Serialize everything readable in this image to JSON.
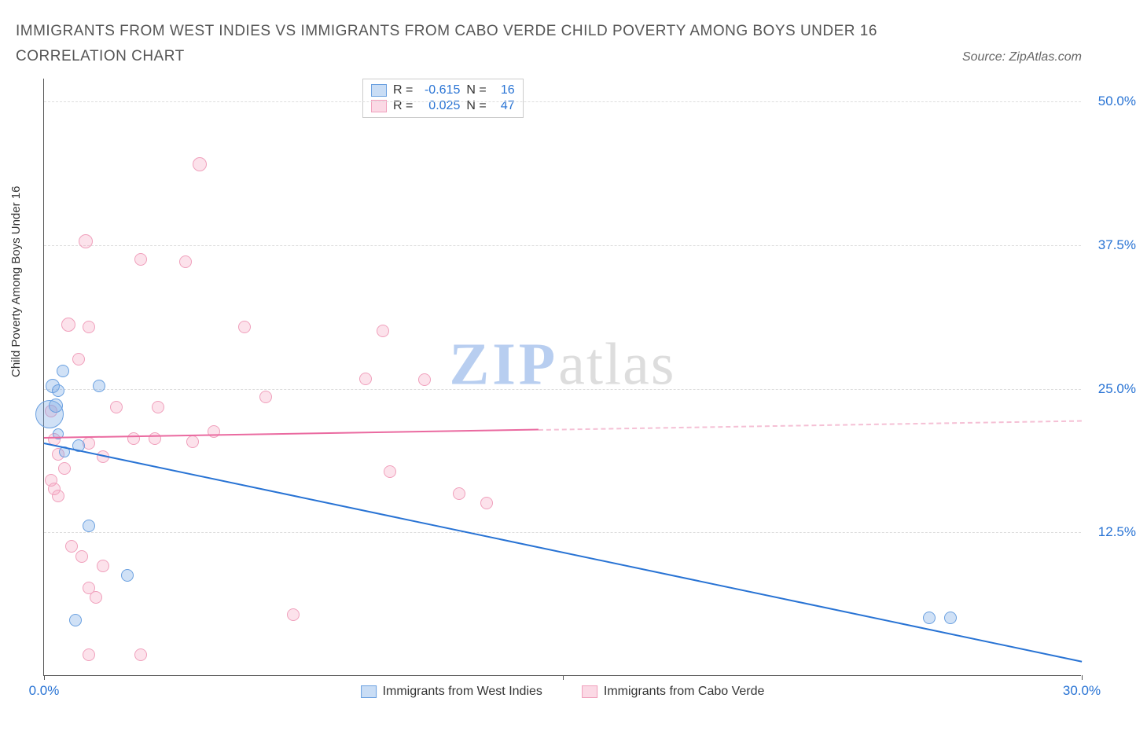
{
  "title": "IMMIGRANTS FROM WEST INDIES VS IMMIGRANTS FROM CABO VERDE CHILD POVERTY AMONG BOYS UNDER 16 CORRELATION CHART",
  "source_label": "Source: ZipAtlas.com",
  "ylabel": "Child Poverty Among Boys Under 16",
  "chart": {
    "type": "scatter",
    "xlim": [
      0,
      30
    ],
    "ylim": [
      0,
      52
    ],
    "ytick_values": [
      12.5,
      25.0,
      37.5,
      50.0
    ],
    "ytick_labels": [
      "12.5%",
      "25.0%",
      "37.5%",
      "50.0%"
    ],
    "xtick_values": [
      0,
      15,
      30
    ],
    "xtick_labels": [
      "0.0%",
      "",
      "30.0%"
    ],
    "grid_color": "#dddddd",
    "background_color": "#ffffff",
    "axis_color": "#555555"
  },
  "series": {
    "blue": {
      "label": "Immigrants from West Indies",
      "color_fill": "rgba(120,170,230,0.35)",
      "color_stroke": "#6aa0e0",
      "trend_color": "#2873d4",
      "R": "-0.615",
      "N": "16",
      "trend": {
        "x0": 0,
        "y0": 20.3,
        "x1": 30,
        "y1": 1.3
      },
      "points": [
        {
          "x": 0.15,
          "y": 22.7,
          "r": 18
        },
        {
          "x": 0.25,
          "y": 25.2,
          "r": 9
        },
        {
          "x": 0.35,
          "y": 23.5,
          "r": 9
        },
        {
          "x": 0.4,
          "y": 24.8,
          "r": 8
        },
        {
          "x": 0.55,
          "y": 26.5,
          "r": 8
        },
        {
          "x": 1.0,
          "y": 20.0,
          "r": 8
        },
        {
          "x": 1.6,
          "y": 25.2,
          "r": 8
        },
        {
          "x": 1.3,
          "y": 13.0,
          "r": 8
        },
        {
          "x": 0.9,
          "y": 4.8,
          "r": 8
        },
        {
          "x": 2.4,
          "y": 8.7,
          "r": 8
        },
        {
          "x": 0.6,
          "y": 19.4,
          "r": 7
        },
        {
          "x": 0.4,
          "y": 21.0,
          "r": 7
        },
        {
          "x": 25.6,
          "y": 5.0,
          "r": 8
        },
        {
          "x": 26.2,
          "y": 5.0,
          "r": 8
        }
      ]
    },
    "pink": {
      "label": "Immigrants from Cabo Verde",
      "color_fill": "rgba(245,160,190,0.3)",
      "color_stroke": "#f0a0bc",
      "trend_color": "#ea6aa0",
      "trend_dashed_color": "#f5c0d5",
      "R": "0.025",
      "N": "47",
      "trend": {
        "x0": 0,
        "y0": 20.8,
        "x1": 30,
        "y1": 22.3,
        "solid_until_x": 14.3
      },
      "points": [
        {
          "x": 4.5,
          "y": 44.5,
          "r": 9
        },
        {
          "x": 1.2,
          "y": 37.8,
          "r": 9
        },
        {
          "x": 2.8,
          "y": 36.2,
          "r": 8
        },
        {
          "x": 4.1,
          "y": 36.0,
          "r": 8
        },
        {
          "x": 0.7,
          "y": 30.5,
          "r": 9
        },
        {
          "x": 1.3,
          "y": 30.3,
          "r": 8
        },
        {
          "x": 5.8,
          "y": 30.3,
          "r": 8
        },
        {
          "x": 9.8,
          "y": 30.0,
          "r": 8
        },
        {
          "x": 1.0,
          "y": 27.5,
          "r": 8
        },
        {
          "x": 4.9,
          "y": 21.2,
          "r": 8
        },
        {
          "x": 6.4,
          "y": 24.2,
          "r": 8
        },
        {
          "x": 9.3,
          "y": 25.8,
          "r": 8
        },
        {
          "x": 11.0,
          "y": 25.7,
          "r": 8
        },
        {
          "x": 0.2,
          "y": 23.0,
          "r": 8
        },
        {
          "x": 0.3,
          "y": 20.5,
          "r": 8
        },
        {
          "x": 0.4,
          "y": 19.2,
          "r": 8
        },
        {
          "x": 0.6,
          "y": 18.0,
          "r": 8
        },
        {
          "x": 1.3,
          "y": 20.2,
          "r": 8
        },
        {
          "x": 1.7,
          "y": 19.0,
          "r": 8
        },
        {
          "x": 2.1,
          "y": 23.3,
          "r": 8
        },
        {
          "x": 2.6,
          "y": 20.6,
          "r": 8
        },
        {
          "x": 3.2,
          "y": 20.6,
          "r": 8
        },
        {
          "x": 3.3,
          "y": 23.3,
          "r": 8
        },
        {
          "x": 4.3,
          "y": 20.3,
          "r": 8
        },
        {
          "x": 0.2,
          "y": 17.0,
          "r": 8
        },
        {
          "x": 0.3,
          "y": 16.2,
          "r": 8
        },
        {
          "x": 0.4,
          "y": 15.6,
          "r": 8
        },
        {
          "x": 10.0,
          "y": 17.7,
          "r": 8
        },
        {
          "x": 12.0,
          "y": 15.8,
          "r": 8
        },
        {
          "x": 12.8,
          "y": 15.0,
          "r": 8
        },
        {
          "x": 0.8,
          "y": 11.2,
          "r": 8
        },
        {
          "x": 1.1,
          "y": 10.3,
          "r": 8
        },
        {
          "x": 1.7,
          "y": 9.5,
          "r": 8
        },
        {
          "x": 1.3,
          "y": 7.6,
          "r": 8
        },
        {
          "x": 1.5,
          "y": 6.8,
          "r": 8
        },
        {
          "x": 7.2,
          "y": 5.3,
          "r": 8
        },
        {
          "x": 1.3,
          "y": 1.8,
          "r": 8
        },
        {
          "x": 2.8,
          "y": 1.8,
          "r": 8
        }
      ]
    }
  },
  "watermark": {
    "part1": "ZIP",
    "part2": "atlas"
  },
  "stat_legend": {
    "r_label": "R =",
    "n_label": "N ="
  }
}
